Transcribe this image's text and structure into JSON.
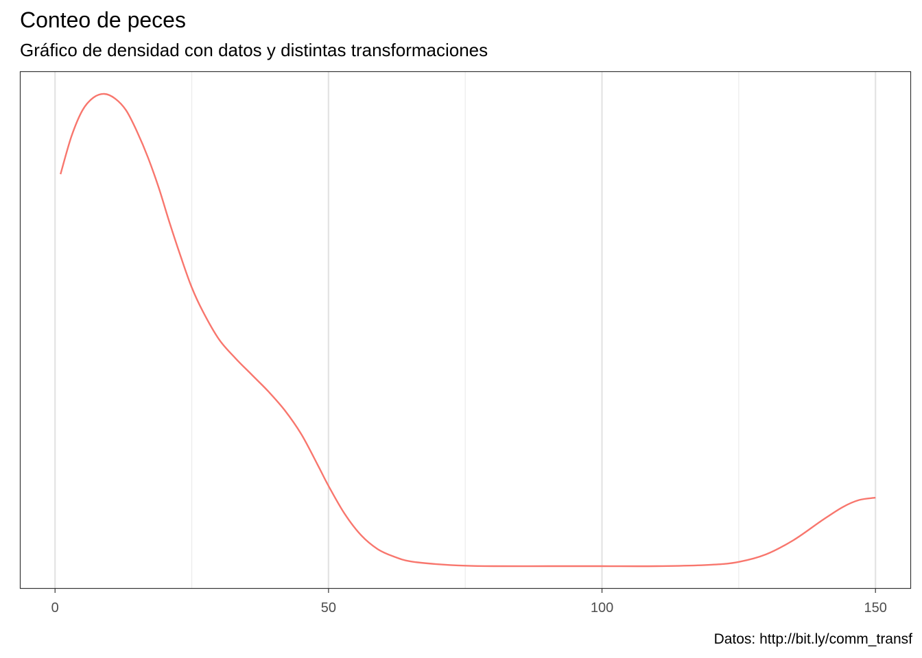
{
  "chart_data": {
    "type": "line",
    "title": "Conteo de peces",
    "subtitle": "Gráfico de densidad con datos y distintas transformaciones",
    "caption": "Datos: http://bit.ly/comm_transf",
    "xlabel": "",
    "ylabel": "",
    "xlim": [
      -6.3,
      156.5
    ],
    "ylim": [
      0,
      1
    ],
    "x_ticks": [
      0,
      50,
      100,
      150
    ],
    "x_minor_ticks": [
      25,
      75,
      125
    ],
    "y_ticks": [],
    "grid": "vertical",
    "series": [
      {
        "color": "#F8766D",
        "points": [
          [
            1,
            0.83
          ],
          [
            3,
            0.91
          ],
          [
            5,
            0.965
          ],
          [
            7,
            0.992
          ],
          [
            9,
            1.0
          ],
          [
            11,
            0.99
          ],
          [
            13,
            0.965
          ],
          [
            15,
            0.92
          ],
          [
            17,
            0.865
          ],
          [
            19,
            0.8
          ],
          [
            21,
            0.725
          ],
          [
            23,
            0.655
          ],
          [
            25,
            0.59
          ],
          [
            27,
            0.54
          ],
          [
            30,
            0.48
          ],
          [
            33,
            0.44
          ],
          [
            36,
            0.405
          ],
          [
            39,
            0.37
          ],
          [
            42,
            0.33
          ],
          [
            45,
            0.28
          ],
          [
            48,
            0.215
          ],
          [
            50,
            0.17
          ],
          [
            53,
            0.11
          ],
          [
            56,
            0.065
          ],
          [
            59,
            0.036
          ],
          [
            62,
            0.02
          ],
          [
            65,
            0.01
          ],
          [
            70,
            0.004
          ],
          [
            75,
            0.001
          ],
          [
            80,
            0.0
          ],
          [
            90,
            0.0
          ],
          [
            100,
            0.0
          ],
          [
            110,
            0.0
          ],
          [
            120,
            0.003
          ],
          [
            125,
            0.009
          ],
          [
            130,
            0.025
          ],
          [
            135,
            0.055
          ],
          [
            140,
            0.095
          ],
          [
            144,
            0.125
          ],
          [
            147,
            0.14
          ],
          [
            150,
            0.145
          ]
        ]
      }
    ]
  }
}
